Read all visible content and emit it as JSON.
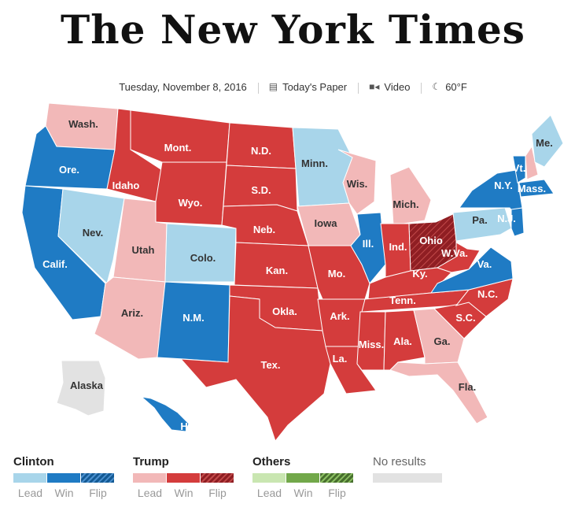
{
  "header": {
    "masthead": "The New York Times",
    "date": "Tuesday, November 8, 2016",
    "todays_paper": "Today's Paper",
    "video": "Video",
    "weather": "60°F"
  },
  "colors": {
    "clinton_lead": "#a8d5ea",
    "clinton_win": "#1f7bc4",
    "clinton_flip": "#145a94",
    "trump_lead": "#f2b8b8",
    "trump_win": "#d43c3c",
    "trump_flip": "#8f1e23",
    "others_lead": "#c9e6b1",
    "others_win": "#72a84a",
    "others_flip": "#476f2d",
    "no_results": "#e2e2e2"
  },
  "states": {
    "wash": {
      "label": "Wash.",
      "status": "trump_lead"
    },
    "ore": {
      "label": "Ore.",
      "status": "clinton_win"
    },
    "calif": {
      "label": "Calif.",
      "status": "clinton_win"
    },
    "nev": {
      "label": "Nev.",
      "status": "clinton_lead"
    },
    "idaho": {
      "label": "Idaho",
      "status": "trump_win"
    },
    "mont": {
      "label": "Mont.",
      "status": "trump_win"
    },
    "wyo": {
      "label": "Wyo.",
      "status": "trump_win"
    },
    "utah": {
      "label": "Utah",
      "status": "trump_lead"
    },
    "colo": {
      "label": "Colo.",
      "status": "clinton_lead"
    },
    "ariz": {
      "label": "Ariz.",
      "status": "trump_lead"
    },
    "nm": {
      "label": "N.M.",
      "status": "clinton_win"
    },
    "nd": {
      "label": "N.D.",
      "status": "trump_win"
    },
    "sd": {
      "label": "S.D.",
      "status": "trump_win"
    },
    "neb": {
      "label": "Neb.",
      "status": "trump_win"
    },
    "kan": {
      "label": "Kan.",
      "status": "trump_win"
    },
    "okla": {
      "label": "Okla.",
      "status": "trump_win"
    },
    "tex": {
      "label": "Tex.",
      "status": "trump_win"
    },
    "minn": {
      "label": "Minn.",
      "status": "clinton_lead"
    },
    "iowa": {
      "label": "Iowa",
      "status": "trump_lead"
    },
    "mo": {
      "label": "Mo.",
      "status": "trump_win"
    },
    "ark": {
      "label": "Ark.",
      "status": "trump_win"
    },
    "la": {
      "label": "La.",
      "status": "trump_win"
    },
    "wis": {
      "label": "Wis.",
      "status": "trump_lead"
    },
    "ill": {
      "label": "Ill.",
      "status": "clinton_win"
    },
    "mich": {
      "label": "Mich.",
      "status": "trump_lead"
    },
    "ind": {
      "label": "Ind.",
      "status": "trump_win"
    },
    "ohio": {
      "label": "Ohio",
      "status": "trump_flip"
    },
    "ky": {
      "label": "Ky.",
      "status": "trump_win"
    },
    "tenn": {
      "label": "Tenn.",
      "status": "trump_win"
    },
    "miss": {
      "label": "Miss.",
      "status": "trump_win"
    },
    "ala": {
      "label": "Ala.",
      "status": "trump_win"
    },
    "ga": {
      "label": "Ga.",
      "status": "trump_lead"
    },
    "fla": {
      "label": "Fla.",
      "status": "trump_lead"
    },
    "sc": {
      "label": "S.C.",
      "status": "trump_win"
    },
    "nc": {
      "label": "N.C.",
      "status": "trump_win"
    },
    "va": {
      "label": "Va.",
      "status": "clinton_win"
    },
    "wva": {
      "label": "W.Va.",
      "status": "trump_win"
    },
    "pa": {
      "label": "Pa.",
      "status": "clinton_lead"
    },
    "ny": {
      "label": "N.Y.",
      "status": "clinton_win"
    },
    "vt": {
      "label": "Vt.",
      "status": "clinton_win"
    },
    "nh": {
      "label": "",
      "status": "trump_lead"
    },
    "me": {
      "label": "Me.",
      "status": "clinton_lead"
    },
    "mass": {
      "label": "Mass.",
      "status": "clinton_win"
    },
    "nj": {
      "label": "N.J.",
      "status": "clinton_win"
    },
    "alaska": {
      "label": "Alaska",
      "status": "no_results"
    },
    "hawaii": {
      "label": "Hawaii",
      "status": "clinton_win"
    }
  },
  "legend": [
    {
      "name": "Clinton",
      "sub": [
        "Lead",
        "Win",
        "Flip"
      ]
    },
    {
      "name": "Trump",
      "sub": [
        "Lead",
        "Win",
        "Flip"
      ]
    },
    {
      "name": "Others",
      "sub": [
        "Lead",
        "Win",
        "Flip"
      ]
    },
    {
      "name": "No results",
      "sub": []
    }
  ]
}
